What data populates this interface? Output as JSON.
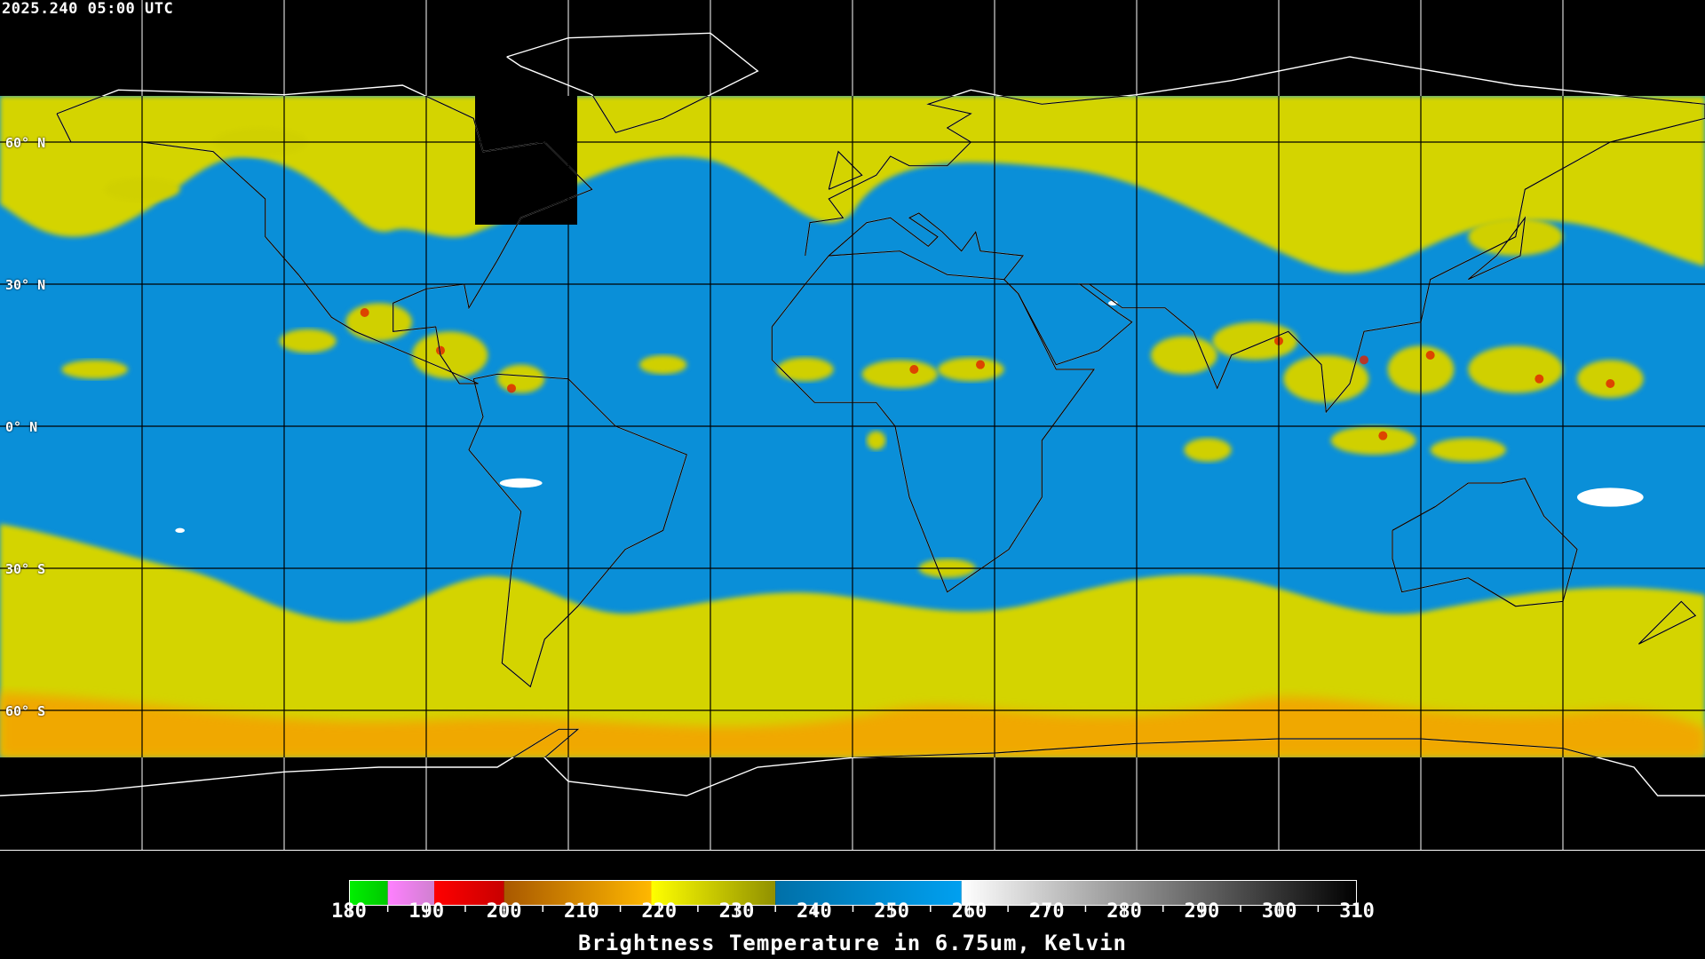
{
  "header": {
    "timestamp": "2025.240 05:00 UTC"
  },
  "map": {
    "projection": "equirectangular",
    "lon_range": [
      -180,
      180
    ],
    "grid_spacing_deg": 30,
    "lat_labels": [
      {
        "lat": 60,
        "label": "60° N"
      },
      {
        "lat": 30,
        "label": "30° N"
      },
      {
        "lat": 0,
        "label": "0° N"
      },
      {
        "lat": -30,
        "label": "30° S"
      },
      {
        "lat": -60,
        "label": "60° S"
      }
    ],
    "colors": {
      "moist_yellow": "#d8d800",
      "dry_blue": "#0a8fd8",
      "cold_orange": "#f0a000",
      "convective_red": "#e01010",
      "background": "#000000"
    }
  },
  "colorbar": {
    "title": "Brightness Temperature in 6.75um, Kelvin",
    "range": [
      180,
      310
    ],
    "tick_labels": [
      "180",
      "190",
      "200",
      "210",
      "220",
      "230",
      "240",
      "250",
      "260",
      "270",
      "280",
      "290",
      "300",
      "310"
    ],
    "segments": [
      {
        "from": 180,
        "to": 185,
        "colors": [
          "#00f000",
          "#00c800"
        ]
      },
      {
        "from": 185,
        "to": 191,
        "colors": [
          "#ff80ff",
          "#d080d0"
        ]
      },
      {
        "from": 191,
        "to": 200,
        "colors": [
          "#ff0000",
          "#c80000"
        ]
      },
      {
        "from": 200,
        "to": 219,
        "colors": [
          "#a85800",
          "#ffb800"
        ]
      },
      {
        "from": 219,
        "to": 235,
        "colors": [
          "#ffff00",
          "#909000"
        ]
      },
      {
        "from": 235,
        "to": 259,
        "colors": [
          "#0070a8",
          "#00a0f0"
        ]
      },
      {
        "from": 259,
        "to": 310,
        "colors": [
          "#ffffff",
          "#000000"
        ]
      }
    ]
  }
}
